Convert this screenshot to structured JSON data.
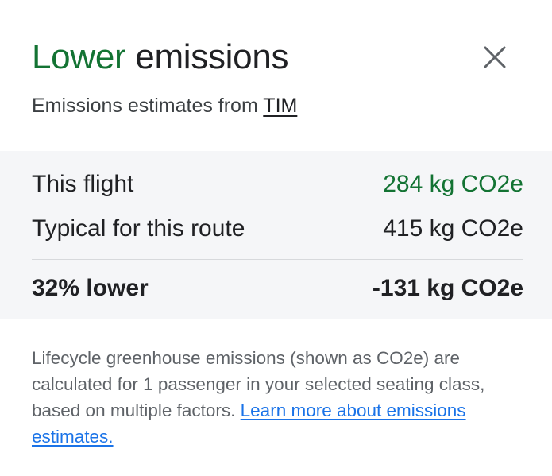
{
  "header": {
    "title_accent": "Lower",
    "title_rest": "emissions",
    "close_icon": "close-icon",
    "accent_color": "#137333"
  },
  "subtitle": {
    "prefix": "Emissions estimates from",
    "link": "TIM"
  },
  "comparison": {
    "rows": [
      {
        "label": "This flight",
        "value": "284 kg CO2e"
      },
      {
        "label": "Typical for this route",
        "value": "415 kg CO2e"
      },
      {
        "label": "32% lower",
        "value": "-131 kg CO2e"
      }
    ]
  },
  "footnote": {
    "text": "Lifecycle greenhouse emissions (shown as CO2e) are calculated for 1 passenger in your selected seating class, based on multiple factors.",
    "link": "Learn more about emissions estimates.",
    "link_color": "#1a73e8"
  }
}
